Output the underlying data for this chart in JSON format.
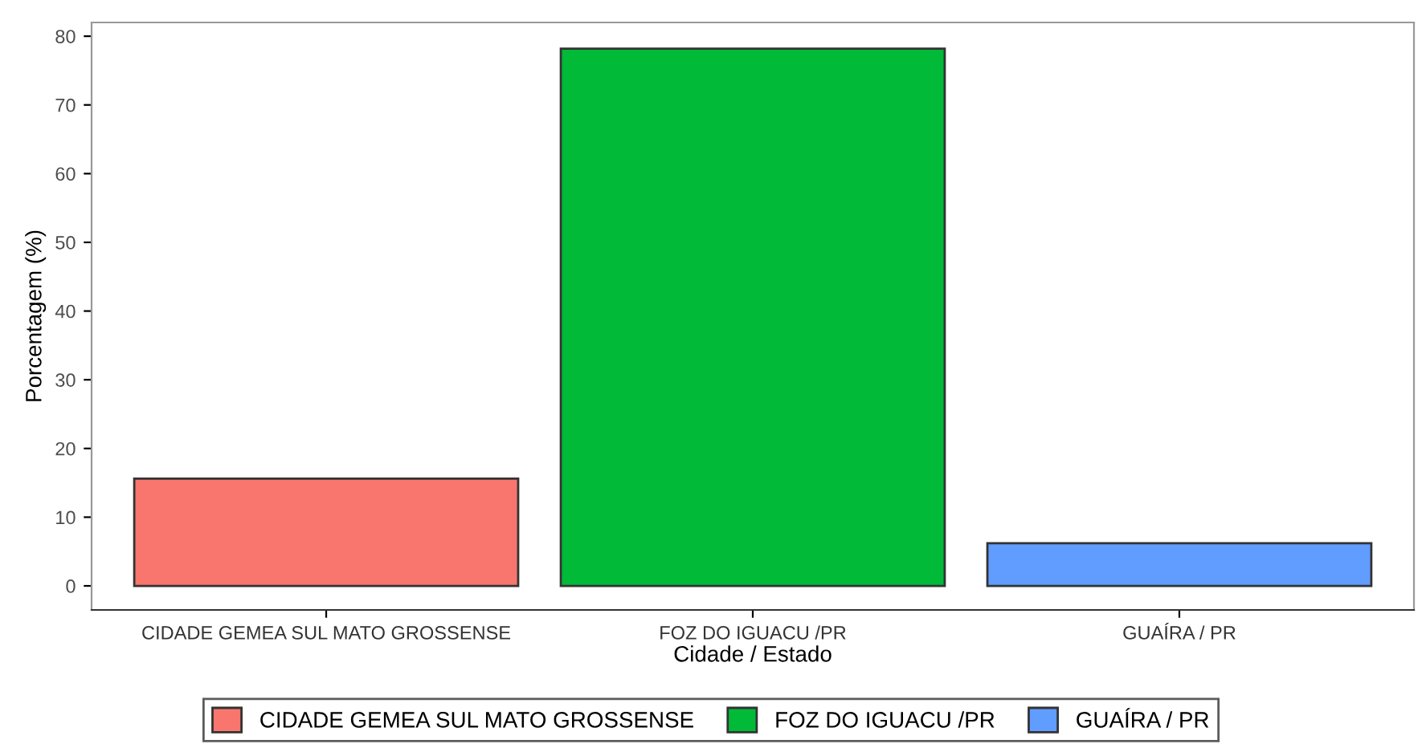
{
  "chart_data": {
    "type": "bar",
    "xlabel": "Cidade / Estado",
    "ylabel": "Porcentagem (%)",
    "categories": [
      "CIDADE GEMEA SUL MATO GROSSENSE",
      "FOZ DO IGUACU /PR",
      "GUAÍRA / PR"
    ],
    "series": [
      {
        "name": "CIDADE GEMEA SUL MATO GROSSENSE",
        "color": "#f8766d",
        "values": [
          15.6,
          null,
          null
        ]
      },
      {
        "name": "FOZ DO IGUACU /PR",
        "color": "#00ba38",
        "values": [
          null,
          78.2,
          null
        ]
      },
      {
        "name": "GUAÍRA / PR",
        "color": "#619cff",
        "values": [
          null,
          null,
          6.2
        ]
      }
    ],
    "ylim": [
      -3.5,
      82
    ],
    "yticks": [
      0,
      10,
      20,
      30,
      40,
      50,
      60,
      70,
      80
    ],
    "grid": false,
    "legend": "bottom"
  }
}
